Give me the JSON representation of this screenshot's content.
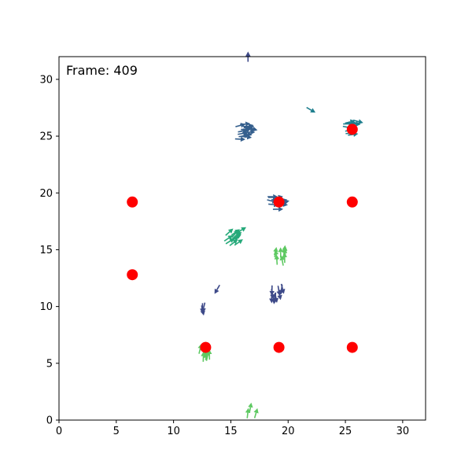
{
  "chart_data": {
    "type": "scatter",
    "annotation": "Frame: 409",
    "xlim": [
      0,
      32
    ],
    "ylim": [
      0,
      32
    ],
    "x_ticks": [
      0,
      5,
      10,
      15,
      20,
      25,
      30
    ],
    "y_ticks": [
      0,
      5,
      10,
      15,
      20,
      25,
      30
    ],
    "grid": false,
    "colors": {
      "target": "#ff0000",
      "dark_navy": "#3e4a89",
      "steel_blue": "#355f8d",
      "teal": "#1f7f8e",
      "teal_green": "#26a97a",
      "green": "#5ec962"
    },
    "series": [
      {
        "marker": "circle",
        "color": "#ff0000",
        "points": [
          {
            "x": 6.4,
            "y": 19.2
          },
          {
            "x": 6.4,
            "y": 12.8
          },
          {
            "x": 25.6,
            "y": 19.2
          },
          {
            "x": 25.6,
            "y": 6.4
          },
          {
            "x": 19.2,
            "y": 6.4
          },
          {
            "x": 12.8,
            "y": 6.4
          },
          {
            "x": 25.6,
            "y": 25.6
          },
          {
            "x": 19.2,
            "y": 19.2
          }
        ]
      },
      {
        "marker": "arrow",
        "color_by": "heading",
        "clusters": [
          {
            "x": 16.3,
            "y": 25.4,
            "heading": 0,
            "spread": 0.7,
            "count": 16,
            "color": "#355f8d"
          },
          {
            "x": 25.8,
            "y": 25.7,
            "heading": 0,
            "spread": 0.6,
            "count": 10,
            "color": "#1f7f8e"
          },
          {
            "x": 19.2,
            "y": 19.1,
            "heading": 0,
            "spread": 0.6,
            "count": 12,
            "color": "#355f8d"
          },
          {
            "x": 15.4,
            "y": 16.2,
            "heading": 35,
            "spread": 0.6,
            "count": 12,
            "color": "#26a97a"
          },
          {
            "x": 19.3,
            "y": 14.5,
            "heading": 90,
            "spread": 0.5,
            "count": 10,
            "color": "#5ec962"
          },
          {
            "x": 19.0,
            "y": 11.1,
            "heading": -90,
            "spread": 0.6,
            "count": 10,
            "color": "#3e4a89"
          },
          {
            "x": 12.8,
            "y": 6.0,
            "heading": 90,
            "spread": 0.5,
            "count": 12,
            "color": "#5ec962"
          },
          {
            "x": 12.5,
            "y": 9.5,
            "heading": -90,
            "spread": 0.4,
            "count": 3,
            "color": "#3e4a89"
          },
          {
            "x": 16.8,
            "y": 0.9,
            "heading": 85,
            "spread": 0.4,
            "count": 3,
            "color": "#5ec962"
          },
          {
            "x": 13.8,
            "y": 11.5,
            "heading": -120,
            "spread": 0.05,
            "count": 1,
            "color": "#3e4a89"
          },
          {
            "x": 22.0,
            "y": 27.3,
            "heading": -30,
            "spread": 0.05,
            "count": 1,
            "color": "#1f7f8e"
          },
          {
            "x": 16.5,
            "y": 32.0,
            "heading": 90,
            "spread": 0.02,
            "count": 1,
            "color": "#3e4a89"
          }
        ]
      }
    ]
  }
}
